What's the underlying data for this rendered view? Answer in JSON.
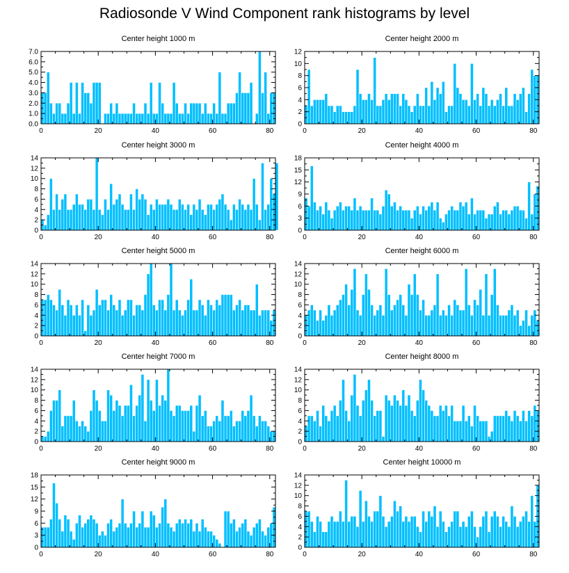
{
  "page": {
    "title": "Radiosonde V Wind Component rank histograms by level"
  },
  "style": {
    "bar_color": "#00BFFF",
    "bar_edge": "#ffffff",
    "axis_color": "#000000"
  },
  "chart_data": [
    {
      "type": "bar",
      "title": "Center height 1000 m",
      "xlim": [
        0,
        82
      ],
      "xticks": [
        0,
        20,
        40,
        60,
        80
      ],
      "ylim": [
        0,
        7
      ],
      "yticks": [
        0,
        1,
        2,
        3,
        4,
        5,
        6,
        7
      ],
      "ytick_labels": [
        "0.0",
        "1.0",
        "2.0",
        "3.0",
        "4.0",
        "5.0",
        "6.0",
        "7.0"
      ],
      "values": [
        3,
        3,
        5,
        2,
        1,
        2,
        2,
        1,
        1,
        2,
        4,
        1,
        4,
        1,
        4,
        3,
        3,
        2,
        4,
        4,
        4,
        0,
        1,
        1,
        2,
        1,
        2,
        1,
        1,
        1,
        1,
        1,
        2,
        1,
        1,
        1,
        2,
        1,
        4,
        1,
        1,
        4,
        2,
        1,
        1,
        1,
        4,
        2,
        1,
        1,
        2,
        1,
        2,
        2,
        2,
        2,
        1,
        2,
        1,
        1,
        2,
        1,
        5,
        1,
        1,
        2,
        2,
        2,
        3,
        5,
        3,
        3,
        3,
        4,
        0,
        1,
        7,
        3,
        5,
        1,
        3,
        3
      ]
    },
    {
      "type": "bar",
      "title": "Center height 2000 m",
      "xlim": [
        0,
        82
      ],
      "xticks": [
        0,
        20,
        40,
        60,
        80
      ],
      "ylim": [
        0,
        12
      ],
      "yticks": [
        0,
        2,
        4,
        6,
        8,
        10,
        12
      ],
      "ytick_labels": [
        "0",
        "2",
        "4",
        "6",
        "8",
        "10",
        "12"
      ],
      "values": [
        3,
        9,
        3,
        4,
        4,
        4,
        4,
        5,
        3,
        3,
        2,
        3,
        3,
        2,
        2,
        2,
        2,
        3,
        9,
        5,
        4,
        4,
        5,
        4,
        11,
        3,
        3,
        4,
        5,
        4,
        5,
        5,
        5,
        3,
        5,
        4,
        3,
        2,
        3,
        5,
        3,
        3,
        6,
        3,
        7,
        4,
        6,
        5,
        7,
        2,
        3,
        3,
        10,
        6,
        5,
        4,
        4,
        3,
        10,
        4,
        5,
        3,
        6,
        5,
        3,
        4,
        3,
        4,
        5,
        3,
        6,
        3,
        3,
        5,
        4,
        5,
        6,
        2,
        5,
        9,
        8,
        8
      ]
    },
    {
      "type": "bar",
      "title": "Center height 3000 m",
      "xlim": [
        0,
        82
      ],
      "xticks": [
        0,
        20,
        40,
        60,
        80
      ],
      "ylim": [
        0,
        14
      ],
      "yticks": [
        0,
        2,
        4,
        6,
        8,
        10,
        12,
        14
      ],
      "ytick_labels": [
        "0",
        "2",
        "4",
        "6",
        "8",
        "10",
        "12",
        "14"
      ],
      "values": [
        2,
        1,
        3,
        10,
        4,
        7,
        4,
        6,
        7,
        4,
        4,
        5,
        7,
        5,
        5,
        4,
        6,
        6,
        4,
        14,
        4,
        3,
        6,
        4,
        9,
        5,
        6,
        7,
        5,
        4,
        4,
        7,
        4,
        8,
        6,
        7,
        6,
        3,
        5,
        4,
        6,
        5,
        5,
        5,
        6,
        5,
        4,
        4,
        6,
        5,
        4,
        5,
        3,
        5,
        4,
        6,
        4,
        3,
        5,
        5,
        4,
        5,
        6,
        7,
        5,
        4,
        2,
        5,
        4,
        6,
        5,
        4,
        5,
        4,
        10,
        5,
        2,
        13,
        4,
        5,
        10,
        7,
        13
      ]
    },
    {
      "type": "bar",
      "title": "Center height 4000 m",
      "xlim": [
        0,
        82
      ],
      "xticks": [
        0,
        20,
        40,
        60,
        80
      ],
      "ylim": [
        0,
        18
      ],
      "yticks": [
        0,
        3,
        6,
        9,
        12,
        15,
        18
      ],
      "ytick_labels": [
        "0",
        "3",
        "6",
        "9",
        "12",
        "15",
        "18"
      ],
      "values": [
        8,
        6,
        16,
        7,
        5,
        6,
        4,
        7,
        5,
        3,
        5,
        6,
        7,
        5,
        6,
        6,
        5,
        8,
        5,
        6,
        5,
        5,
        5,
        8,
        5,
        5,
        4,
        6,
        10,
        9,
        6,
        7,
        5,
        6,
        5,
        5,
        5,
        3,
        5,
        6,
        4,
        6,
        5,
        6,
        7,
        5,
        7,
        3,
        2,
        4,
        5,
        6,
        5,
        5,
        7,
        6,
        7,
        4,
        8,
        4,
        5,
        5,
        5,
        3,
        4,
        4,
        6,
        7,
        4,
        5,
        5,
        4,
        5,
        6,
        6,
        5,
        5,
        3,
        12,
        4,
        9,
        11
      ]
    },
    {
      "type": "bar",
      "title": "Center height 5000 m",
      "xlim": [
        0,
        82
      ],
      "xticks": [
        0,
        20,
        40,
        60,
        80
      ],
      "ylim": [
        0,
        14
      ],
      "yticks": [
        0,
        2,
        4,
        6,
        8,
        10,
        12,
        14
      ],
      "ytick_labels": [
        "0",
        "2",
        "4",
        "6",
        "8",
        "10",
        "12",
        "14"
      ],
      "values": [
        7,
        7,
        8,
        7,
        6,
        5,
        9,
        6,
        4,
        7,
        6,
        4,
        6,
        4,
        7,
        1,
        6,
        4,
        5,
        9,
        6,
        7,
        7,
        5,
        8,
        6,
        5,
        7,
        4,
        5,
        7,
        7,
        4,
        6,
        6,
        5,
        8,
        12,
        14,
        6,
        5,
        7,
        7,
        5,
        8,
        14,
        5,
        7,
        5,
        4,
        5,
        7,
        11,
        5,
        5,
        7,
        6,
        4,
        7,
        6,
        5,
        7,
        6,
        8,
        8,
        8,
        8,
        5,
        6,
        7,
        5,
        6,
        6,
        5,
        5,
        10,
        4,
        5,
        5,
        5,
        3,
        5
      ]
    },
    {
      "type": "bar",
      "title": "Center height 6000 m",
      "xlim": [
        0,
        82
      ],
      "xticks": [
        0,
        20,
        40,
        60,
        80
      ],
      "ylim": [
        0,
        14
      ],
      "yticks": [
        0,
        2,
        4,
        6,
        8,
        10,
        12,
        14
      ],
      "ytick_labels": [
        "0",
        "2",
        "4",
        "6",
        "8",
        "10",
        "12",
        "14"
      ],
      "values": [
        4,
        5,
        6,
        5,
        3,
        5,
        3,
        4,
        6,
        4,
        5,
        6,
        7,
        8,
        10,
        6,
        9,
        13,
        5,
        4,
        8,
        12,
        9,
        6,
        4,
        5,
        6,
        4,
        13,
        8,
        5,
        6,
        7,
        8,
        6,
        4,
        10,
        8,
        12,
        8,
        5,
        7,
        4,
        4,
        5,
        6,
        12,
        4,
        5,
        4,
        6,
        4,
        7,
        6,
        5,
        5,
        13,
        6,
        4,
        7,
        6,
        9,
        4,
        12,
        4,
        8,
        13,
        6,
        4,
        4,
        4,
        5,
        6,
        4,
        5,
        2,
        3,
        5,
        2,
        4,
        5,
        3
      ]
    },
    {
      "type": "bar",
      "title": "Center height 7000 m",
      "xlim": [
        0,
        82
      ],
      "xticks": [
        0,
        20,
        40,
        60,
        80
      ],
      "ylim": [
        0,
        14
      ],
      "yticks": [
        0,
        2,
        4,
        6,
        8,
        10,
        12,
        14
      ],
      "ytick_labels": [
        "0",
        "2",
        "4",
        "6",
        "8",
        "10",
        "12",
        "14"
      ],
      "values": [
        1,
        1,
        2,
        6,
        8,
        8,
        10,
        3,
        5,
        5,
        5,
        8,
        4,
        3,
        4,
        3,
        2,
        6,
        10,
        8,
        6,
        4,
        4,
        10,
        9,
        6,
        8,
        7,
        5,
        7,
        7,
        11,
        5,
        7,
        9,
        13,
        4,
        12,
        8,
        6,
        12,
        7,
        9,
        8,
        14,
        6,
        5,
        7,
        7,
        6,
        6,
        6,
        7,
        2,
        7,
        9,
        5,
        6,
        3,
        3,
        4,
        5,
        4,
        8,
        5,
        5,
        6,
        3,
        4,
        4,
        6,
        5,
        6,
        9,
        5,
        3,
        5,
        4,
        4,
        3,
        2,
        2
      ]
    },
    {
      "type": "bar",
      "title": "Center height 8000 m",
      "xlim": [
        0,
        82
      ],
      "xticks": [
        0,
        20,
        40,
        60,
        80
      ],
      "ylim": [
        0,
        14
      ],
      "yticks": [
        0,
        2,
        4,
        6,
        8,
        10,
        12,
        14
      ],
      "ytick_labels": [
        "0",
        "2",
        "4",
        "6",
        "8",
        "10",
        "12",
        "14"
      ],
      "values": [
        3,
        5,
        5,
        4,
        6,
        3,
        7,
        5,
        4,
        6,
        7,
        5,
        8,
        12,
        6,
        4,
        9,
        13,
        7,
        5,
        8,
        10,
        12,
        8,
        5,
        6,
        6,
        1,
        9,
        8,
        7,
        9,
        8,
        7,
        10,
        7,
        9,
        6,
        5,
        8,
        12,
        10,
        8,
        7,
        6,
        5,
        5,
        7,
        6,
        7,
        5,
        7,
        4,
        4,
        4,
        7,
        4,
        5,
        3,
        7,
        5,
        4,
        4,
        4,
        1,
        2,
        5,
        5,
        5,
        5,
        6,
        5,
        4,
        6,
        5,
        4,
        6,
        4,
        6,
        5,
        7,
        6
      ]
    },
    {
      "type": "bar",
      "title": "Center height 9000 m",
      "xlim": [
        0,
        82
      ],
      "xticks": [
        0,
        20,
        40,
        60,
        80
      ],
      "ylim": [
        0,
        18
      ],
      "yticks": [
        0,
        3,
        6,
        9,
        12,
        15,
        18
      ],
      "ytick_labels": [
        "0",
        "3",
        "6",
        "9",
        "12",
        "15",
        "18"
      ],
      "values": [
        5,
        5,
        5,
        7,
        16,
        11,
        7,
        4,
        8,
        7,
        4,
        2,
        6,
        8,
        5,
        6,
        7,
        8,
        7,
        6,
        3,
        4,
        3,
        6,
        7,
        4,
        5,
        6,
        12,
        6,
        5,
        6,
        9,
        5,
        6,
        9,
        5,
        5,
        9,
        8,
        5,
        6,
        10,
        12,
        6,
        5,
        4,
        6,
        7,
        6,
        7,
        6,
        7,
        4,
        6,
        4,
        7,
        5,
        4,
        4,
        3,
        2,
        1,
        0,
        9,
        9,
        6,
        7,
        4,
        5,
        6,
        7,
        4,
        3,
        5,
        6,
        7,
        4,
        3,
        5,
        6,
        10
      ]
    },
    {
      "type": "bar",
      "title": "Center height 10000 m",
      "xlim": [
        0,
        82
      ],
      "xticks": [
        0,
        20,
        40,
        60,
        80
      ],
      "ylim": [
        0,
        14
      ],
      "yticks": [
        0,
        2,
        4,
        6,
        8,
        10,
        12,
        14
      ],
      "ytick_labels": [
        "0",
        "2",
        "4",
        "6",
        "8",
        "10",
        "12",
        "14"
      ],
      "values": [
        7,
        7,
        5,
        3,
        6,
        5,
        3,
        3,
        5,
        6,
        5,
        5,
        7,
        5,
        13,
        5,
        6,
        6,
        4,
        11,
        5,
        9,
        6,
        5,
        7,
        7,
        10,
        6,
        4,
        5,
        6,
        9,
        7,
        8,
        5,
        6,
        5,
        6,
        6,
        4,
        3,
        7,
        5,
        7,
        6,
        8,
        4,
        7,
        5,
        3,
        4,
        5,
        7,
        7,
        4,
        5,
        4,
        6,
        7,
        4,
        2,
        4,
        6,
        7,
        3,
        6,
        7,
        6,
        4,
        6,
        5,
        4,
        8,
        6,
        4,
        5,
        6,
        7,
        5,
        10,
        5,
        12
      ]
    }
  ]
}
